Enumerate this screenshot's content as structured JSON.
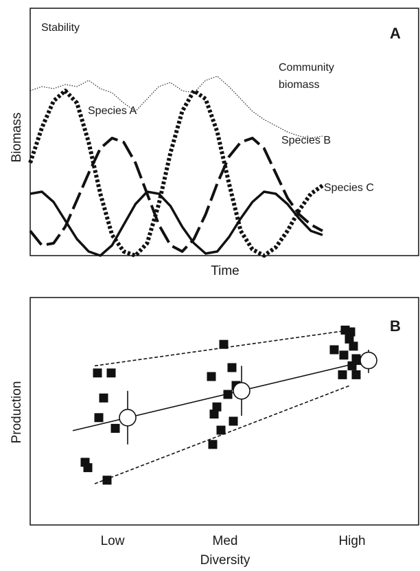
{
  "chart_data": [
    {
      "type": "line",
      "panel_label": "A",
      "title": "Stability",
      "xlabel": "Time",
      "ylabel": "Biomass",
      "grid": false,
      "series": [
        {
          "name": "Species A",
          "style": "dotted",
          "x": [
            0,
            0.04,
            0.08,
            0.12,
            0.16,
            0.2,
            0.24,
            0.28,
            0.32,
            0.36,
            0.4,
            0.44,
            0.48,
            0.52,
            0.56,
            0.6,
            0.64,
            0.68,
            0.72,
            0.76,
            0.8,
            0.84,
            0.88,
            0.92,
            0.96,
            1
          ],
          "values": [
            0.45,
            0.62,
            0.75,
            0.8,
            0.74,
            0.55,
            0.3,
            0.1,
            0.02,
            0,
            0.06,
            0.25,
            0.5,
            0.7,
            0.8,
            0.76,
            0.6,
            0.35,
            0.12,
            0.03,
            0,
            0.04,
            0.12,
            0.22,
            0.3,
            0.34
          ]
        },
        {
          "name": "Species B",
          "style": "dashed",
          "x": [
            0,
            0.04,
            0.08,
            0.12,
            0.16,
            0.2,
            0.24,
            0.28,
            0.32,
            0.36,
            0.4,
            0.44,
            0.48,
            0.52,
            0.56,
            0.6,
            0.64,
            0.68,
            0.72,
            0.76,
            0.8,
            0.84,
            0.88,
            0.92,
            0.96,
            1
          ],
          "values": [
            0.12,
            0.05,
            0.06,
            0.14,
            0.27,
            0.4,
            0.52,
            0.57,
            0.55,
            0.45,
            0.3,
            0.15,
            0.05,
            0.02,
            0.08,
            0.2,
            0.35,
            0.48,
            0.55,
            0.57,
            0.52,
            0.4,
            0.28,
            0.2,
            0.15,
            0.12
          ]
        },
        {
          "name": "Species C",
          "style": "solid",
          "x": [
            0,
            0.04,
            0.08,
            0.12,
            0.16,
            0.2,
            0.24,
            0.28,
            0.32,
            0.36,
            0.4,
            0.44,
            0.48,
            0.52,
            0.56,
            0.6,
            0.64,
            0.68,
            0.72,
            0.76,
            0.8,
            0.84,
            0.88,
            0.92,
            0.96,
            1
          ],
          "values": [
            0.3,
            0.31,
            0.26,
            0.17,
            0.08,
            0.02,
            0,
            0.05,
            0.15,
            0.25,
            0.31,
            0.3,
            0.24,
            0.14,
            0.06,
            0.01,
            0.02,
            0.09,
            0.18,
            0.26,
            0.31,
            0.3,
            0.25,
            0.18,
            0.12,
            0.1
          ]
        },
        {
          "name": "Community biomass",
          "style": "fine-dotted",
          "x": [
            0,
            0.04,
            0.08,
            0.12,
            0.16,
            0.2,
            0.24,
            0.28,
            0.32,
            0.36,
            0.4,
            0.44,
            0.48,
            0.52,
            0.56,
            0.6,
            0.64,
            0.68,
            0.72,
            0.76,
            0.8,
            0.84,
            0.88,
            0.92,
            0.96,
            1
          ],
          "values": [
            0.8,
            0.82,
            0.81,
            0.83,
            0.82,
            0.85,
            0.81,
            0.79,
            0.74,
            0.7,
            0.76,
            0.82,
            0.84,
            0.8,
            0.79,
            0.85,
            0.87,
            0.82,
            0.76,
            0.7,
            0.66,
            0.63,
            0.6,
            0.58,
            0.57,
            0.58
          ]
        }
      ],
      "labels": {
        "species_a": "Species A",
        "species_b": "Species B",
        "species_c": "Species C",
        "community_line1": "Community",
        "community_line2": "biomass"
      }
    },
    {
      "type": "scatter",
      "panel_label": "B",
      "xlabel": "Diversity",
      "ylabel": "Production",
      "categories": [
        "Low",
        "Med",
        "High"
      ],
      "grid": false,
      "points": [
        {
          "category": "Low",
          "values": [
            0.72,
            0.72,
            0.58,
            0.47,
            0.41,
            0.22,
            0.19,
            0.12
          ]
        },
        {
          "category": "Med",
          "values": [
            0.88,
            0.75,
            0.7,
            0.65,
            0.6,
            0.53,
            0.49,
            0.45,
            0.4,
            0.32
          ]
        },
        {
          "category": "High",
          "values": [
            0.96,
            0.95,
            0.91,
            0.87,
            0.85,
            0.82,
            0.8,
            0.79,
            0.76,
            0.71,
            0.71
          ]
        }
      ],
      "means": [
        0.47,
        0.62,
        0.79
      ],
      "errors": [
        [
          0.32,
          0.62
        ],
        [
          0.48,
          0.76
        ],
        [
          0.72,
          0.85
        ]
      ],
      "trend": "linear",
      "envelope": {
        "upper": [
          0.76,
          0.96
        ],
        "lower": [
          0.1,
          0.65
        ]
      }
    }
  ]
}
